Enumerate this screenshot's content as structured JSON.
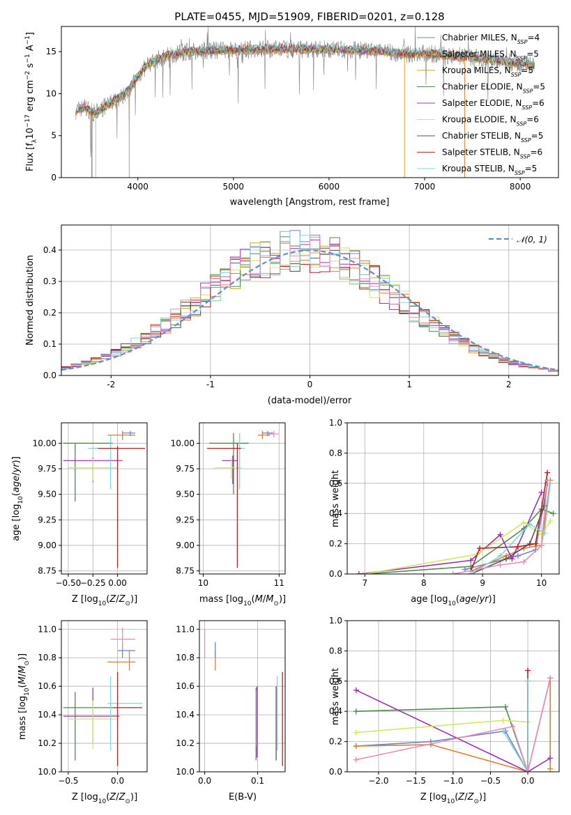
{
  "chart_data": [
    {
      "type": "line",
      "title": "PLATE=0455, MJD=51909, FIBERID=0201, z=0.128",
      "xlabel": "wavelength [Angstrom, rest frame]",
      "ylabel": "Flux [f_λ 10^-17 erg cm^-2 s^-1 A^-1]",
      "xlim": [
        3200,
        8400
      ],
      "ylim": [
        0,
        18
      ],
      "xticks": [
        4000,
        5000,
        6000,
        7000,
        8000
      ],
      "yticks": [
        0,
        5,
        10,
        15
      ],
      "legend_position": "right",
      "series": [
        {
          "name": "Chabrier MILES, N_SSP=4",
          "color": "#6a85c8"
        },
        {
          "name": "Salpeter MILES, N_SSP=5",
          "color": "#e07d2a"
        },
        {
          "name": "Kroupa MILES, N_SSP=5",
          "color": "#d7a31e"
        },
        {
          "name": "Chabrier ELODIE, N_SSP=5",
          "color": "#4f8a4f"
        },
        {
          "name": "Salpeter ELODIE, N_SSP=6",
          "color": "#9b30b8"
        },
        {
          "name": "Kroupa ELODIE, N_SSP=6",
          "color": "#d4e85a"
        },
        {
          "name": "Chabrier STELIB, N_SSP=5",
          "color": "#555555"
        },
        {
          "name": "Salpeter STELIB, N_SSP=6",
          "color": "#b81e1e"
        },
        {
          "name": "Kroupa STELIB, N_SSP=5",
          "color": "#7fd6da"
        }
      ],
      "continuum": {
        "x": [
          3350,
          3450,
          3550,
          3650,
          3750,
          3850,
          3950,
          4050,
          4150,
          4300,
          4500,
          4700,
          5000,
          5300,
          5600,
          5900,
          6200,
          6500,
          6800,
          7000,
          7300,
          7600,
          7900,
          8150
        ],
        "y": [
          8.0,
          8.4,
          7.6,
          8.4,
          9.1,
          9.8,
          11.2,
          12.8,
          13.8,
          14.5,
          15.0,
          15.1,
          15.2,
          15.3,
          15.3,
          15.3,
          15.2,
          15.1,
          14.7,
          14.8,
          14.5,
          14.2,
          13.7,
          13.4
        ]
      }
    },
    {
      "type": "histogram",
      "xlabel": "(data-model)/error",
      "ylabel": "Normed distribution",
      "xlim": [
        -2.5,
        2.5
      ],
      "ylim": [
        0,
        0.48
      ],
      "xticks": [
        -2,
        -1,
        0,
        1,
        2
      ],
      "yticks": [
        0.0,
        0.1,
        0.2,
        0.3,
        0.4
      ],
      "legend": "N(0,1)",
      "legend_position": "top-right",
      "normal_curve": {
        "mean": 0,
        "sigma": 1,
        "color": "#5b8fd0"
      }
    },
    {
      "type": "scatter",
      "xlabel": "Z [log10(Z/Z⊙)]",
      "ylabel": "age  [log10(age/yr)]",
      "xlim": [
        -0.57,
        0.3
      ],
      "ylim": [
        8.72,
        10.2
      ],
      "xticks": [
        -0.5,
        -0.25,
        0.0
      ],
      "yticks": [
        8.75,
        9.0,
        9.25,
        9.5,
        9.75,
        10.0
      ],
      "points": [
        {
          "x": -0.43,
          "y": 10.0,
          "xlo": -0.55,
          "xhi": -0.05,
          "ylo": 9.43,
          "yhi": 10.0,
          "color": "#4f8a4f"
        },
        {
          "x": -0.25,
          "y": 9.83,
          "xlo": -0.55,
          "xhi": 0.05,
          "ylo": 9.62,
          "yhi": 9.86,
          "color": "#9b30b8"
        },
        {
          "x": -0.25,
          "y": 9.76,
          "xlo": -0.5,
          "xhi": 0.0,
          "ylo": 9.63,
          "yhi": 9.85,
          "color": "#d4e85a"
        },
        {
          "x": -0.07,
          "y": 9.95,
          "xlo": -0.3,
          "xhi": 0.0,
          "ylo": 9.55,
          "yhi": 10.08,
          "color": "#7fd6da"
        },
        {
          "x": 0.0,
          "y": 9.95,
          "xlo": -0.2,
          "xhi": 0.28,
          "ylo": 8.78,
          "yhi": 9.97,
          "color": "#b81e1e"
        },
        {
          "x": 0.05,
          "y": 10.08,
          "xlo": -0.1,
          "xhi": 0.18,
          "ylo": 10.03,
          "yhi": 10.12,
          "color": "#e07d2a"
        },
        {
          "x": 0.13,
          "y": 10.1,
          "xlo": 0.05,
          "xhi": 0.18,
          "ylo": 10.07,
          "yhi": 10.12,
          "color": "#6a85c8"
        }
      ]
    },
    {
      "type": "scatter",
      "xlabel": "mass [log10(M/M⊙)]",
      "ylabel": "",
      "xlim": [
        9.95,
        11.08
      ],
      "ylim": [
        8.72,
        10.2
      ],
      "xticks": [
        10,
        11
      ],
      "yticks": [
        8.75,
        9.0,
        9.25,
        9.5,
        9.75,
        10.0
      ],
      "points": [
        {
          "x": 10.4,
          "y": 10.0,
          "xlo": 10.08,
          "xhi": 10.6,
          "ylo": 9.5,
          "yhi": 10.1,
          "color": "#4f8a4f"
        },
        {
          "x": 10.39,
          "y": 9.83,
          "xlo": 10.25,
          "xhi": 10.45,
          "ylo": 9.6,
          "yhi": 9.88,
          "color": "#9b30b8"
        },
        {
          "x": 10.37,
          "y": 9.76,
          "xlo": 10.15,
          "xhi": 10.5,
          "ylo": 9.65,
          "yhi": 9.85,
          "color": "#d4e85a"
        },
        {
          "x": 10.48,
          "y": 9.95,
          "xlo": 10.3,
          "xhi": 10.55,
          "ylo": 9.55,
          "yhi": 10.1,
          "color": "#7fd6da"
        },
        {
          "x": 10.45,
          "y": 9.95,
          "xlo": 10.05,
          "xhi": 10.5,
          "ylo": 8.78,
          "yhi": 10.0,
          "color": "#b81e1e"
        },
        {
          "x": 10.78,
          "y": 10.08,
          "xlo": 10.72,
          "xhi": 10.88,
          "ylo": 10.04,
          "yhi": 10.12,
          "color": "#e07d2a"
        },
        {
          "x": 10.85,
          "y": 10.1,
          "xlo": 10.78,
          "xhi": 10.92,
          "ylo": 10.07,
          "yhi": 10.12,
          "color": "#6a85c8"
        },
        {
          "x": 10.93,
          "y": 10.09,
          "xlo": 10.85,
          "xhi": 11.0,
          "ylo": 10.06,
          "yhi": 10.12,
          "color": "#e88bb8"
        }
      ]
    },
    {
      "type": "line",
      "xlabel": "age  [log10(age/yr)]",
      "ylabel": "mass weight",
      "xlim": [
        6.7,
        10.3
      ],
      "ylim": [
        0,
        1.0
      ],
      "xticks": [
        7,
        8,
        9,
        10
      ],
      "yticks": [
        0.0,
        0.2,
        0.4,
        0.6,
        0.8,
        1.0
      ],
      "series": [
        {
          "color": "#6a85c8",
          "x": [
            8.7,
            9.6,
            9.9,
            10.1
          ],
          "y": [
            0.03,
            0.12,
            0.16,
            0.6
          ]
        },
        {
          "color": "#e07d2a",
          "x": [
            8.8,
            9.4,
            9.7,
            10.0,
            10.15
          ],
          "y": [
            0.02,
            0.12,
            0.17,
            0.19,
            0.62
          ]
        },
        {
          "color": "#4f8a4f",
          "x": [
            7.0,
            8.8,
            9.7,
            10.0,
            10.2
          ],
          "y": [
            0.0,
            0.05,
            0.3,
            0.43,
            0.4
          ]
        },
        {
          "color": "#9b30b8",
          "x": [
            6.9,
            8.8,
            9.3,
            9.5,
            10.0
          ],
          "y": [
            0.0,
            0.09,
            0.26,
            0.1,
            0.54
          ]
        },
        {
          "color": "#d4e85a",
          "x": [
            7.0,
            8.9,
            9.7,
            10.0,
            10.15
          ],
          "y": [
            0.0,
            0.13,
            0.34,
            0.26,
            0.35
          ]
        },
        {
          "color": "#555555",
          "x": [
            8.8,
            9.4,
            9.8,
            10.05,
            10.1
          ],
          "y": [
            0.0,
            0.1,
            0.2,
            0.45,
            0.6
          ]
        },
        {
          "color": "#b81e1e",
          "x": [
            8.8,
            8.95,
            9.6,
            9.9,
            10.1
          ],
          "y": [
            0.02,
            0.17,
            0.18,
            0.2,
            0.67
          ]
        },
        {
          "color": "#7fd6da",
          "x": [
            8.8,
            9.3,
            9.8,
            10.05,
            10.15
          ],
          "y": [
            0.0,
            0.12,
            0.33,
            0.27,
            0.6
          ]
        },
        {
          "color": "#e88bb8",
          "x": [
            8.5,
            9.3,
            9.7,
            10.0,
            10.1
          ],
          "y": [
            0.0,
            0.06,
            0.08,
            0.19,
            0.62
          ]
        }
      ]
    },
    {
      "type": "scatter",
      "xlabel": "Z [log10(Z/Z⊙)]",
      "ylabel": "mass [log10(M/M⊙)]",
      "xlim": [
        -0.57,
        0.3
      ],
      "ylim": [
        10.0,
        11.06
      ],
      "xticks": [
        -0.5,
        0.0
      ],
      "yticks": [
        10.0,
        10.2,
        10.4,
        10.6,
        10.8,
        11.0
      ],
      "points": [
        {
          "x": -0.43,
          "y": 10.45,
          "xlo": -0.55,
          "xhi": -0.05,
          "ylo": 10.08,
          "yhi": 10.56,
          "color": "#4f8a4f"
        },
        {
          "x": -0.25,
          "y": 10.39,
          "xlo": -0.55,
          "xhi": 0.02,
          "ylo": 10.2,
          "yhi": 10.59,
          "color": "#9b30b8"
        },
        {
          "x": -0.25,
          "y": 10.37,
          "xlo": -0.5,
          "xhi": 0.0,
          "ylo": 10.16,
          "yhi": 10.5,
          "color": "#d4e85a"
        },
        {
          "x": -0.07,
          "y": 10.48,
          "xlo": -0.1,
          "xhi": 0.25,
          "ylo": 10.15,
          "yhi": 10.67,
          "color": "#7fd6da"
        },
        {
          "x": 0.0,
          "y": 10.45,
          "xlo": -0.05,
          "xhi": 0.25,
          "ylo": 10.04,
          "yhi": 10.7,
          "color": "#b81e1e"
        },
        {
          "x": 0.12,
          "y": 10.77,
          "xlo": -0.1,
          "xhi": 0.18,
          "ylo": 10.71,
          "yhi": 10.85,
          "color": "#e07d2a"
        },
        {
          "x": 0.05,
          "y": 10.85,
          "xlo": 0.0,
          "xhi": 0.18,
          "ylo": 10.8,
          "yhi": 10.9,
          "color": "#6a85c8"
        },
        {
          "x": 0.05,
          "y": 10.93,
          "xlo": -0.07,
          "xhi": 0.18,
          "ylo": 10.86,
          "yhi": 11.01,
          "color": "#e88bb8"
        }
      ]
    },
    {
      "type": "scatter",
      "xlabel": "E(B-V)",
      "ylabel": "",
      "xlim": [
        -0.01,
        0.152
      ],
      "ylim": [
        10.0,
        11.06
      ],
      "xticks": [
        0.0,
        0.1
      ],
      "yticks": [
        10.0,
        10.2,
        10.4,
        10.6,
        10.8,
        11.0
      ],
      "points": [
        {
          "x": 0.0,
          "y": 10.9,
          "ylo": 10.8,
          "yhi": 11.0,
          "color": "#e88bb8"
        },
        {
          "x": 0.02,
          "y": 10.77,
          "ylo": 10.71,
          "yhi": 10.85,
          "color": "#e07d2a"
        },
        {
          "x": 0.02,
          "y": 10.85,
          "ylo": 10.8,
          "yhi": 10.91,
          "color": "#6a85c8"
        },
        {
          "x": 0.097,
          "y": 10.45,
          "ylo": 10.08,
          "yhi": 10.59,
          "color": "#4f8a4f"
        },
        {
          "x": 0.098,
          "y": 10.39,
          "ylo": 10.18,
          "yhi": 10.57,
          "color": "#d4e85a"
        },
        {
          "x": 0.099,
          "y": 10.45,
          "ylo": 10.1,
          "yhi": 10.6,
          "color": "#9b30b8"
        },
        {
          "x": 0.137,
          "y": 10.48,
          "ylo": 10.15,
          "yhi": 10.67,
          "color": "#7fd6da"
        },
        {
          "x": 0.135,
          "y": 10.4,
          "ylo": 10.08,
          "yhi": 10.6,
          "color": "#555555"
        },
        {
          "x": 0.147,
          "y": 10.45,
          "ylo": 10.04,
          "yhi": 10.7,
          "color": "#b81e1e"
        }
      ]
    },
    {
      "type": "line",
      "xlabel": "Z [log10(Z/Z⊙)]",
      "ylabel": "mass weight",
      "xlim": [
        -2.42,
        0.42
      ],
      "ylim": [
        0,
        1.0
      ],
      "xticks": [
        -2.0,
        -1.5,
        -1.0,
        -0.5,
        0.0
      ],
      "yticks": [
        0.0,
        0.2,
        0.4,
        0.6,
        0.8,
        1.0
      ],
      "series": [
        {
          "color": "#6a85c8",
          "x": [
            -2.3,
            -1.3,
            -0.3,
            0.0
          ],
          "y": [
            0.17,
            0.2,
            0.27,
            0.0
          ]
        },
        {
          "color": "#e07d2a",
          "x": [
            -2.3,
            -1.3,
            0.0,
            0.3,
            0.3
          ],
          "y": [
            0.17,
            0.18,
            0.0,
            0.62,
            0.02
          ]
        },
        {
          "color": "#4f8a4f",
          "x": [
            -2.3,
            -0.3,
            0.0
          ],
          "y": [
            0.4,
            0.43,
            0.0
          ]
        },
        {
          "color": "#9b30b8",
          "x": [
            -2.3,
            0.0,
            0.3
          ],
          "y": [
            0.54,
            0.0,
            0.09
          ]
        },
        {
          "color": "#d4e85a",
          "x": [
            -2.3,
            -0.33,
            0.0
          ],
          "y": [
            0.26,
            0.34,
            0.33
          ]
        },
        {
          "color": "#555555",
          "x": [
            0.0,
            0.0
          ],
          "y": [
            0.0,
            0.6
          ]
        },
        {
          "color": "#b81e1e",
          "x": [
            0.0,
            0.0
          ],
          "y": [
            0.0,
            0.67
          ]
        },
        {
          "color": "#7fd6da",
          "x": [
            -0.33,
            0.0,
            0.0
          ],
          "y": [
            0.27,
            0.0,
            0.6
          ]
        },
        {
          "color": "#e88bb8",
          "x": [
            -2.3,
            -0.2,
            0.0,
            0.3
          ],
          "y": [
            0.08,
            0.3,
            0.0,
            0.62
          ]
        }
      ]
    }
  ]
}
